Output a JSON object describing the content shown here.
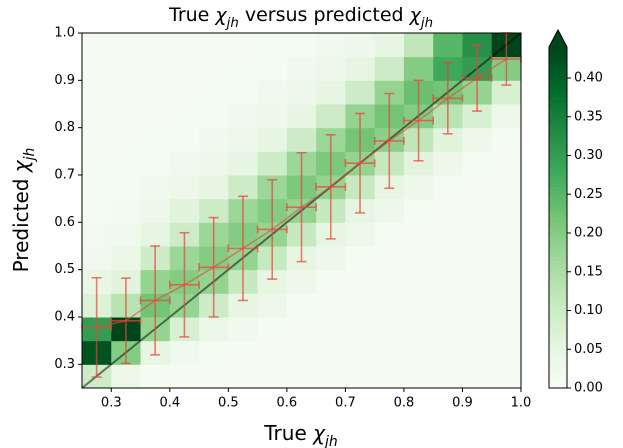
{
  "chart_data": {
    "type": "hist2d",
    "title": [
      "True ",
      "χ",
      "jh",
      " versus predicted ",
      "χ",
      "jh"
    ],
    "xlabel": [
      "True ",
      "χ",
      "jh"
    ],
    "ylabel": [
      "Predicted ",
      "χ",
      "jh"
    ],
    "xbins": [
      0.25,
      0.3,
      0.35,
      0.4,
      0.45,
      0.5,
      0.55,
      0.6,
      0.65,
      0.7,
      0.75,
      0.8,
      0.85,
      0.9,
      0.95,
      1.0
    ],
    "ybins": [
      0.25,
      0.3,
      0.35,
      0.4,
      0.45,
      0.5,
      0.55,
      0.6,
      0.65,
      0.7,
      0.75,
      0.8,
      0.85,
      0.9,
      0.95,
      1.0
    ],
    "counts_by_column": [
      [
        0.1,
        0.42,
        0.3,
        0.07,
        0.04,
        0.02,
        0.015,
        0.01,
        0.01,
        0.01,
        0.005,
        0.005,
        0.005,
        0.005,
        0.005
      ],
      [
        0.03,
        0.2,
        0.44,
        0.13,
        0.06,
        0.04,
        0.02,
        0.015,
        0.01,
        0.01,
        0.005,
        0.005,
        0.005,
        0.005,
        0.005
      ],
      [
        0.01,
        0.05,
        0.18,
        0.22,
        0.18,
        0.1,
        0.05,
        0.03,
        0.02,
        0.01,
        0.01,
        0.005,
        0.005,
        0.005,
        0.005
      ],
      [
        0.005,
        0.02,
        0.08,
        0.18,
        0.2,
        0.17,
        0.1,
        0.06,
        0.03,
        0.02,
        0.01,
        0.01,
        0.005,
        0.005,
        0.005
      ],
      [
        0.005,
        0.01,
        0.04,
        0.1,
        0.18,
        0.2,
        0.17,
        0.1,
        0.05,
        0.03,
        0.02,
        0.01,
        0.01,
        0.005,
        0.005
      ],
      [
        0.005,
        0.005,
        0.02,
        0.05,
        0.11,
        0.18,
        0.2,
        0.17,
        0.1,
        0.05,
        0.03,
        0.02,
        0.01,
        0.01,
        0.005
      ],
      [
        0.005,
        0.005,
        0.01,
        0.03,
        0.05,
        0.11,
        0.18,
        0.2,
        0.17,
        0.1,
        0.05,
        0.03,
        0.02,
        0.01,
        0.01
      ],
      [
        0.005,
        0.005,
        0.005,
        0.01,
        0.03,
        0.05,
        0.11,
        0.18,
        0.21,
        0.17,
        0.1,
        0.05,
        0.03,
        0.02,
        0.01
      ],
      [
        0.005,
        0.005,
        0.005,
        0.005,
        0.01,
        0.03,
        0.05,
        0.11,
        0.18,
        0.21,
        0.17,
        0.1,
        0.05,
        0.03,
        0.02
      ],
      [
        0.005,
        0.005,
        0.005,
        0.005,
        0.005,
        0.01,
        0.03,
        0.05,
        0.11,
        0.18,
        0.22,
        0.18,
        0.1,
        0.05,
        0.03
      ],
      [
        0.005,
        0.005,
        0.005,
        0.005,
        0.005,
        0.005,
        0.01,
        0.03,
        0.05,
        0.11,
        0.19,
        0.22,
        0.18,
        0.1,
        0.05
      ],
      [
        0.005,
        0.005,
        0.005,
        0.005,
        0.005,
        0.005,
        0.005,
        0.01,
        0.03,
        0.06,
        0.12,
        0.2,
        0.23,
        0.2,
        0.12
      ],
      [
        0.005,
        0.005,
        0.005,
        0.005,
        0.005,
        0.005,
        0.005,
        0.005,
        0.01,
        0.03,
        0.06,
        0.13,
        0.22,
        0.28,
        0.25
      ],
      [
        0.005,
        0.005,
        0.005,
        0.005,
        0.005,
        0.005,
        0.005,
        0.005,
        0.005,
        0.01,
        0.03,
        0.08,
        0.18,
        0.3,
        0.32
      ],
      [
        0.005,
        0.005,
        0.005,
        0.005,
        0.005,
        0.005,
        0.005,
        0.005,
        0.005,
        0.005,
        0.01,
        0.03,
        0.08,
        0.2,
        0.44
      ]
    ],
    "colormap": [
      "#f7fcf5",
      "#e5f5e0",
      "#c7e9c0",
      "#a1d99b",
      "#74c476",
      "#41ab5d",
      "#238b45",
      "#006d2c",
      "#00441b"
    ],
    "clim": [
      0,
      0.44
    ],
    "cticks": [
      {
        "value": 0,
        "label": "0.00"
      },
      {
        "value": 0.05,
        "label": "0.05"
      },
      {
        "value": 0.1,
        "label": "0.10"
      },
      {
        "value": 0.15,
        "label": "0.15"
      },
      {
        "value": 0.2,
        "label": "0.20"
      },
      {
        "value": 0.25,
        "label": "0.25"
      },
      {
        "value": 0.3,
        "label": "0.30"
      },
      {
        "value": 0.35,
        "label": "0.35"
      },
      {
        "value": 0.4,
        "label": "0.40"
      }
    ],
    "xlim": [
      0.25,
      1.0
    ],
    "ylim": [
      0.25,
      1.0
    ],
    "xticks": [
      0.3,
      0.4,
      0.5,
      0.6,
      0.7,
      0.8,
      0.9,
      {
        "value": 1.0,
        "label": "1.0"
      }
    ],
    "yticks": [
      0.3,
      0.4,
      0.5,
      0.6,
      0.7,
      0.8,
      0.9,
      {
        "value": 1.0,
        "label": "1.0"
      }
    ],
    "errorbars": {
      "color": "#e8443a",
      "x": [
        0.275,
        0.325,
        0.375,
        0.425,
        0.475,
        0.525,
        0.575,
        0.625,
        0.675,
        0.725,
        0.775,
        0.825,
        0.875,
        0.925,
        0.975
      ],
      "values": [
        0.378,
        0.392,
        0.435,
        0.468,
        0.505,
        0.545,
        0.585,
        0.632,
        0.675,
        0.725,
        0.772,
        0.815,
        0.862,
        0.905,
        0.945
      ],
      "yerr": [
        0.105,
        0.09,
        0.115,
        0.11,
        0.105,
        0.11,
        0.105,
        0.115,
        0.11,
        0.105,
        0.1,
        0.085,
        0.075,
        0.07,
        0.055
      ],
      "xerr": 0.025
    },
    "diagonal": {
      "x": [
        0.25,
        1.0
      ],
      "y": [
        0.25,
        1.0
      ],
      "color": "#000000"
    }
  }
}
